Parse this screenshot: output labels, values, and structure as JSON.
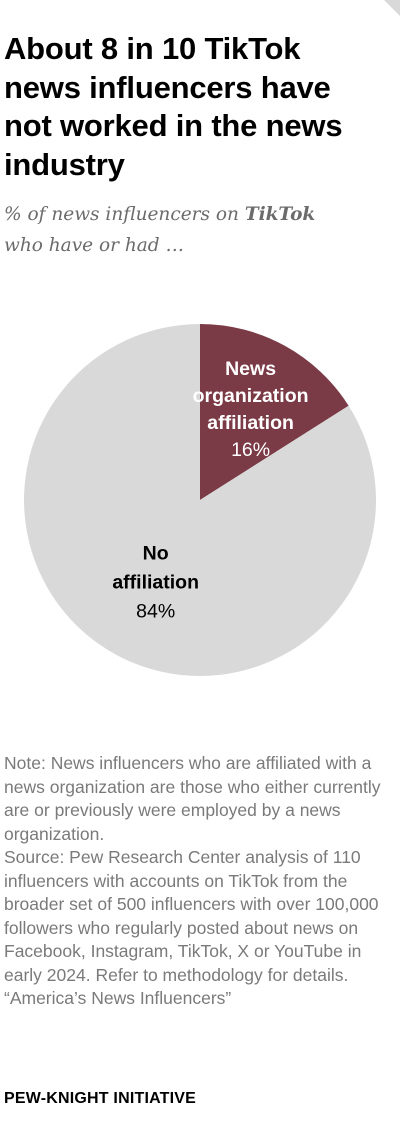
{
  "title": "About 8 in 10 TikTok news influencers have not worked in the news industry",
  "subtitle": {
    "prefix": "% of news influencers on ",
    "emphasis": "TikTok",
    "line2": "who have or had …"
  },
  "chart_data": {
    "type": "pie",
    "slices": [
      {
        "label_lines": [
          "News",
          "organization",
          "affiliation"
        ],
        "value": 16,
        "value_label": "16%",
        "color": "#7b3b46",
        "text_color": "#ffffff"
      },
      {
        "label_lines": [
          "No",
          "affiliation"
        ],
        "value": 84,
        "value_label": "84%",
        "color": "#d9d9d9",
        "text_color": "#000000"
      }
    ]
  },
  "notes": {
    "note": "Note: News influencers who are affiliated with a news organization are those who either currently are or previously were employed by a news organization.",
    "source": "Source: Pew Research Center analysis of 110 influencers with accounts on TikTok from the broader set of 500 influencers with over 100,000 followers who regularly posted about news on Facebook, Instagram, TikTok, X or YouTube in early 2024. Refer to methodology for details.",
    "report": "“America’s News Influencers”"
  },
  "brand": "PEW-KNIGHT INITIATIVE"
}
